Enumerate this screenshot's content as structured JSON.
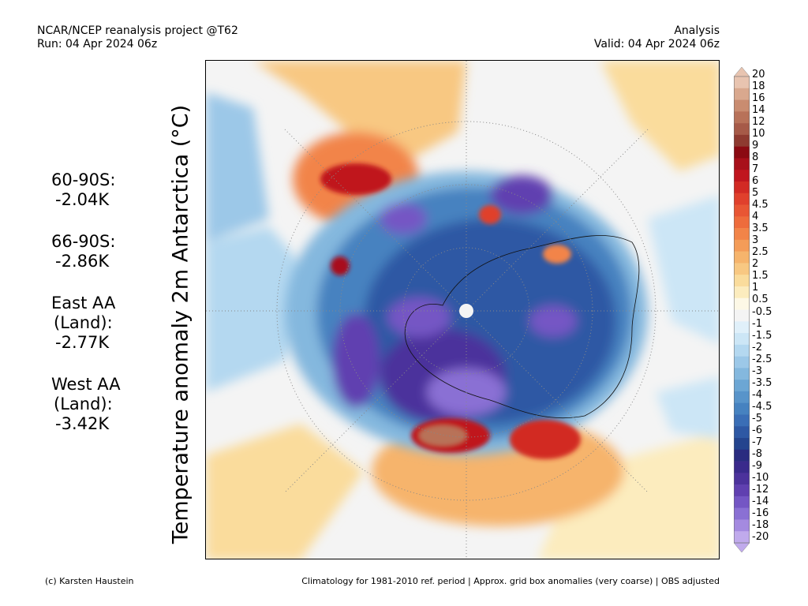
{
  "header": {
    "line1_left": "NCAR/NCEP reanalysis project @T62",
    "line2_left": "Run: 04 Apr 2024 06z",
    "line1_right": "Analysis",
    "line2_right": "Valid: 04 Apr 2024 06z"
  },
  "vertical_title": "Temperature anomaly 2m Antarctica (°C)",
  "stats": [
    {
      "label1": "60-90S:",
      "label2": "",
      "value": "-2.04K"
    },
    {
      "label1": "66-90S:",
      "label2": "",
      "value": "-2.86K"
    },
    {
      "label1": "East AA",
      "label2": "(Land):",
      "value": "-2.77K"
    },
    {
      "label1": "West AA",
      "label2": "(Land):",
      "value": "-3.42K"
    }
  ],
  "colorbar": {
    "labels": [
      "20",
      "18",
      "16",
      "14",
      "12",
      "10",
      "9",
      "8",
      "7",
      "6",
      "5",
      "4.5",
      "4",
      "3.5",
      "3",
      "2.5",
      "2",
      "1.5",
      "1",
      "0.5",
      "-0.5",
      "-1",
      "-1.5",
      "-2",
      "-2.5",
      "-3",
      "-3.5",
      "-4",
      "-4.5",
      "-5",
      "-6",
      "-7",
      "-8",
      "-9",
      "-10",
      "-12",
      "-14",
      "-16",
      "-18",
      "-20"
    ],
    "colors": [
      "#e8c4b0",
      "#d9a88e",
      "#c98c70",
      "#b87259",
      "#a65a48",
      "#8e3a30",
      "#8b0a12",
      "#a8101a",
      "#c0161e",
      "#d22a24",
      "#e0402c",
      "#e85634",
      "#ee6c3c",
      "#f28448",
      "#f49c58",
      "#f6b46c",
      "#f8c882",
      "#fadc9c",
      "#fcecbe",
      "#fdf8e6",
      "#f4f4f4",
      "#e0f0fa",
      "#cce6f6",
      "#b4d8f0",
      "#9cc8e8",
      "#84b8de",
      "#6ca6d4",
      "#5894ca",
      "#4682c0",
      "#3a6eb6",
      "#2e58a4",
      "#24448e",
      "#2a2c80",
      "#3a2a8c",
      "#4c329c",
      "#6040b0",
      "#7456c4",
      "#8a70d4",
      "#a48ae0",
      "#c0aaec"
    ]
  },
  "footer": {
    "left": "(c) Karsten Haustein",
    "right": "Climatology for 1981-2010 ref. period | Approx. grid box anomalies (very coarse) | OBS adjusted"
  }
}
